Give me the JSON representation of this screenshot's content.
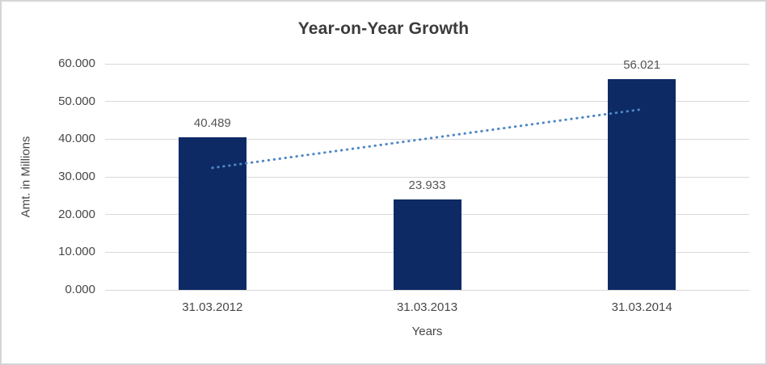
{
  "chart_data": {
    "type": "bar",
    "title": "Year-on-Year Growth",
    "xlabel": "Years",
    "ylabel": "Amt. in Millions",
    "categories": [
      "31.03.2012",
      "31.03.2013",
      "31.03.2014"
    ],
    "values": [
      40.489,
      23.933,
      56.021
    ],
    "data_labels": [
      "40.489",
      "23.933",
      "56.021"
    ],
    "ylim": [
      0,
      60
    ],
    "ytick_step": 10,
    "ytick_labels": [
      "0.000",
      "10.000",
      "20.000",
      "30.000",
      "40.000",
      "50.000",
      "60.000"
    ],
    "grid": true,
    "legend_position": "none",
    "trendline": {
      "type": "linear",
      "style": "dotted",
      "values": [
        32.382,
        40.148,
        47.914
      ]
    },
    "colors": {
      "bar": "#0d2a64",
      "trendline": "#4f87c5",
      "gridline": "#d9d9d9",
      "axis_text": "#474747",
      "data_label_text": "#555555",
      "title_text": "#3b3b3b",
      "background": "#ffffff",
      "frame_border": "#d5d5d5"
    }
  }
}
